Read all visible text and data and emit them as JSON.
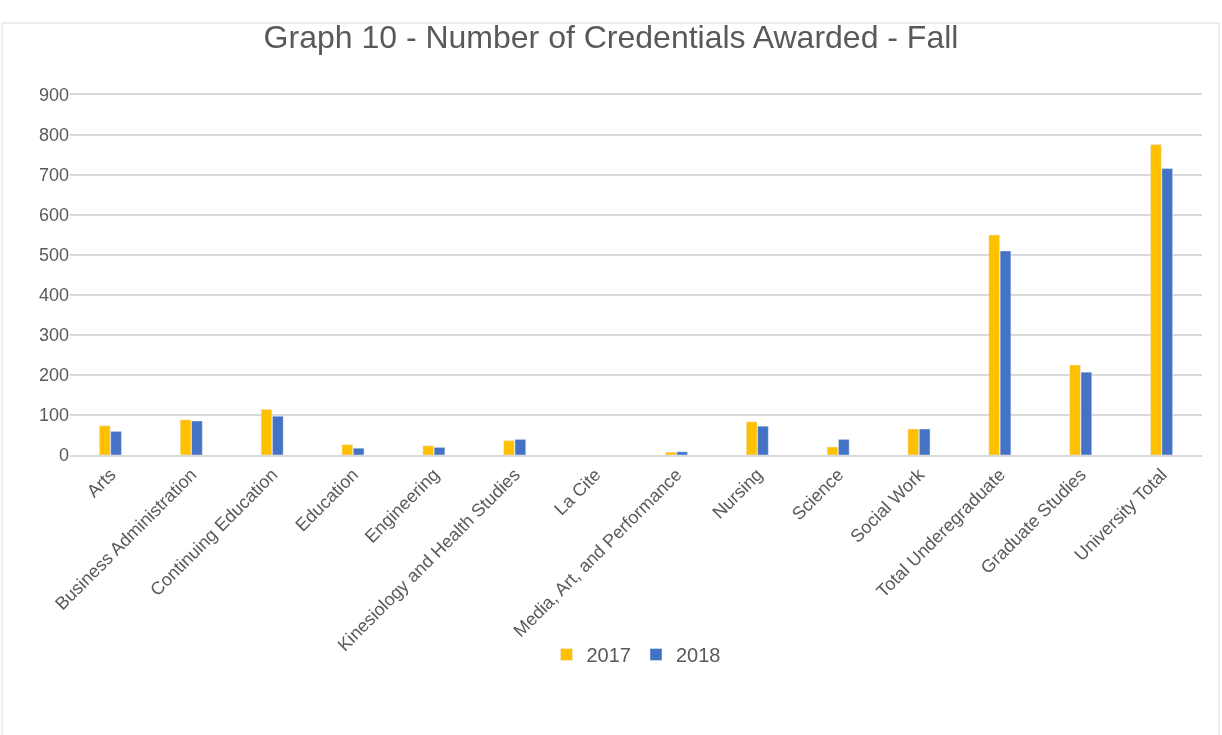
{
  "chart_data": {
    "type": "bar",
    "title": "Graph 10 - Number of Credentials Awarded - Fall",
    "categories": [
      "Arts",
      "Business Administration",
      "Continuing Education",
      "Education",
      "Engineering",
      "Kinesiology and Health Studies",
      "La Cite",
      "Media, Art, and Performance",
      "Nursing",
      "Science",
      "Social Work",
      "Total Underegraduate",
      "Graduate Studies",
      "University Total"
    ],
    "series": [
      {
        "name": "2017",
        "color": "#ffc000",
        "values": [
          73,
          88,
          114,
          26,
          23,
          36,
          null,
          7,
          83,
          20,
          65,
          550,
          225,
          776
        ]
      },
      {
        "name": "2018",
        "color": "#4472c4",
        "values": [
          59,
          85,
          97,
          17,
          19,
          39,
          null,
          8,
          72,
          39,
          65,
          510,
          207,
          716
        ]
      }
    ],
    "ylim": [
      0,
      900
    ],
    "yticks": [
      0,
      100,
      200,
      300,
      400,
      500,
      600,
      700,
      800,
      900
    ],
    "grid": "y",
    "legend": "bottom"
  }
}
